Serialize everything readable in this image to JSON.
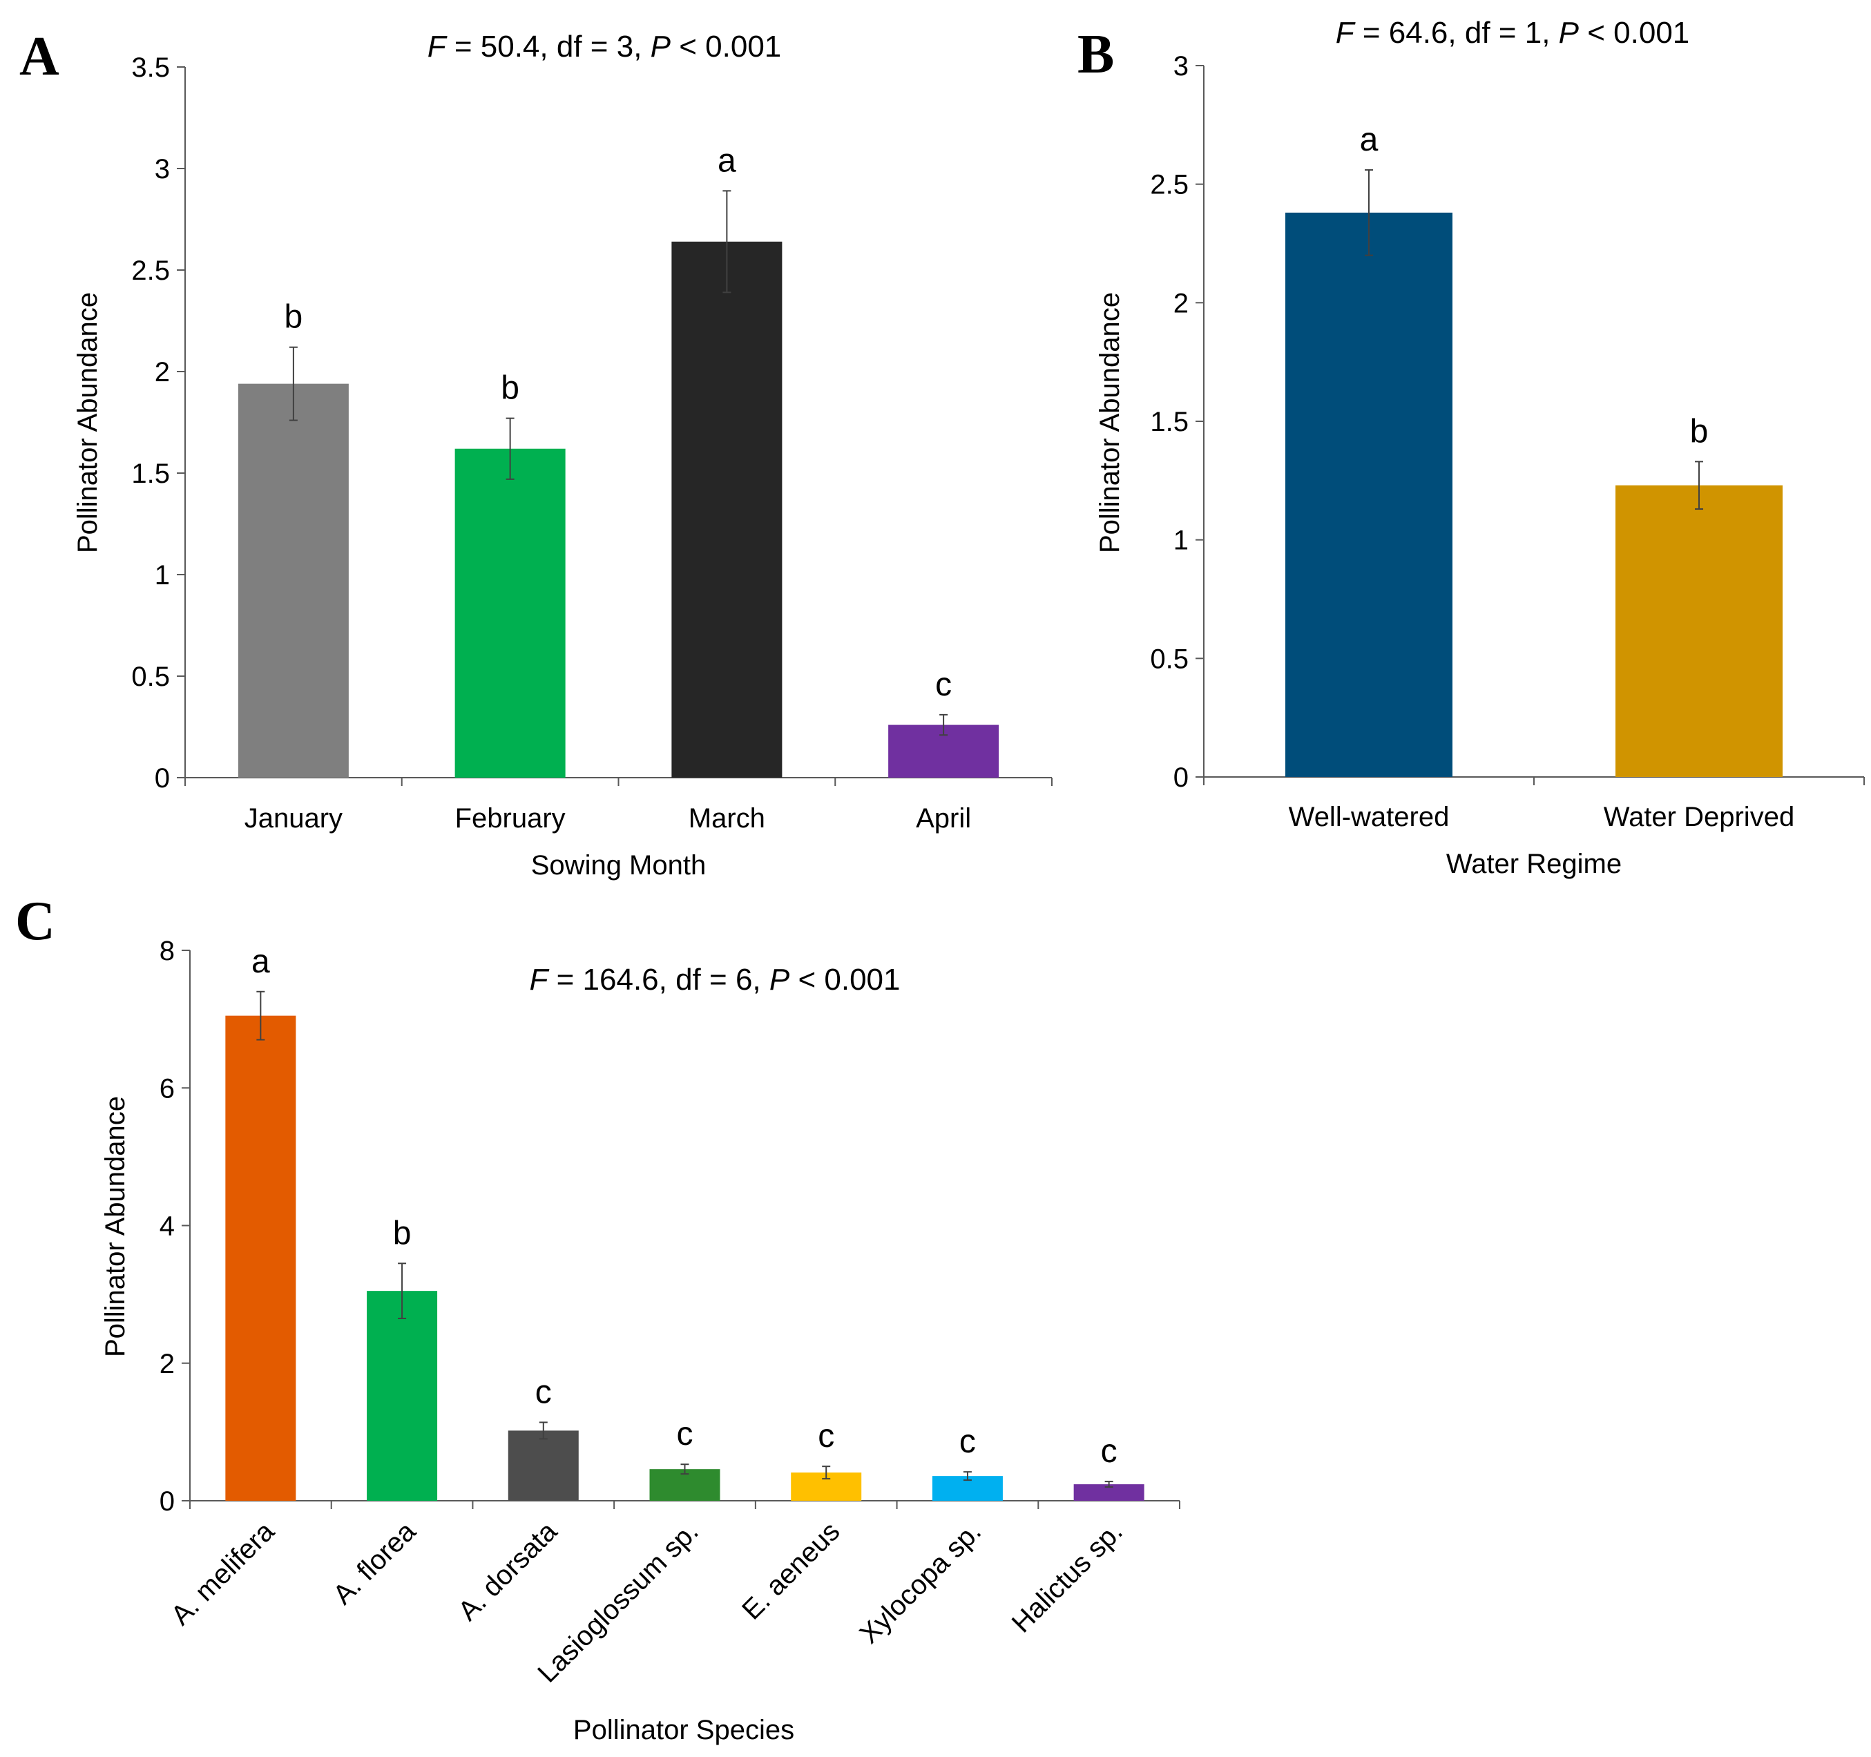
{
  "chart_data": [
    {
      "panel": "A",
      "type": "bar",
      "stat": {
        "F": "50.4",
        "df": "3",
        "P": "0.001"
      },
      "categories": [
        "January",
        "February",
        "March",
        "April"
      ],
      "values": [
        1.94,
        1.62,
        2.64,
        0.26
      ],
      "errors": [
        0.18,
        0.15,
        0.25,
        0.05
      ],
      "letters": [
        "b",
        "b",
        "a",
        "c"
      ],
      "colors": [
        "#7f7f7f",
        "#00b050",
        "#262626",
        "#7030a0"
      ],
      "xlabel": "Sowing Month",
      "ylabel": "Pollinator Abundance",
      "ylim": [
        0,
        3.5
      ],
      "yticks": [
        "0",
        "0.5",
        "1",
        "1.5",
        "2",
        "2.5",
        "3",
        "3.5"
      ],
      "grid": false
    },
    {
      "panel": "B",
      "type": "bar",
      "stat": {
        "F": "64.6",
        "df": "1",
        "P": "0.001"
      },
      "categories": [
        "Well-watered",
        "Water Deprived"
      ],
      "values": [
        2.38,
        1.23
      ],
      "errors": [
        0.18,
        0.1
      ],
      "letters": [
        "a",
        "b"
      ],
      "colors": [
        "#004d7a",
        "#d09400"
      ],
      "xlabel": "Water Regime",
      "ylabel": "Pollinator Abundance",
      "ylim": [
        0,
        3
      ],
      "yticks": [
        "0",
        "0.5",
        "1",
        "1.5",
        "2",
        "2.5",
        "3"
      ],
      "grid": false
    },
    {
      "panel": "C",
      "type": "bar",
      "stat": {
        "F": "164.6",
        "df": "6",
        "P": "0.001"
      },
      "categories": [
        "A. melifera",
        "A. florea",
        "A. dorsata",
        "Lasioglossum sp.",
        "E. aeneus",
        "Xylocopa sp.",
        "Halictus sp."
      ],
      "values": [
        7.05,
        3.05,
        1.02,
        0.46,
        0.41,
        0.36,
        0.24
      ],
      "errors": [
        0.35,
        0.4,
        0.12,
        0.07,
        0.09,
        0.06,
        0.04
      ],
      "letters": [
        "a",
        "b",
        "c",
        "c",
        "c",
        "c",
        "c"
      ],
      "colors": [
        "#e35b00",
        "#00b050",
        "#4d4d4d",
        "#2e8b2e",
        "#ffc000",
        "#00b0f0",
        "#7030a0"
      ],
      "xlabel": "Pollinator Species",
      "ylabel": "Pollinator Abundance",
      "ylim": [
        0,
        8
      ],
      "yticks": [
        "0",
        "2",
        "4",
        "6",
        "8"
      ],
      "grid": false
    }
  ]
}
